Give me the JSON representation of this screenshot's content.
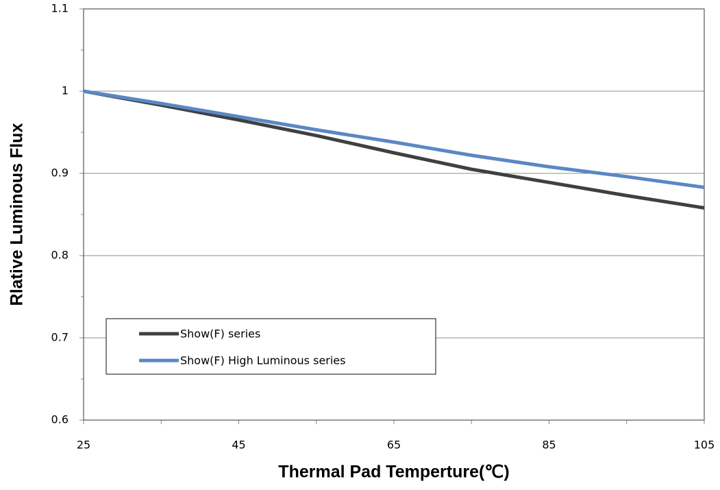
{
  "chart_data": {
    "type": "line",
    "xlabel": "Thermal Pad Temperture(℃)",
    "ylabel": "Rlative Luminous Flux",
    "x": [
      25,
      35,
      45,
      55,
      65,
      75,
      85,
      95,
      105
    ],
    "series": [
      {
        "name": "Show(F) series",
        "color": "#404040",
        "values": [
          1.0,
          0.983,
          0.965,
          0.946,
          0.925,
          0.905,
          0.889,
          0.873,
          0.858
        ]
      },
      {
        "name": "Show(F) High Luminous series",
        "color": "#5b87c5",
        "values": [
          1.0,
          0.985,
          0.969,
          0.953,
          0.938,
          0.922,
          0.908,
          0.896,
          0.883
        ]
      }
    ],
    "xlim": [
      25,
      105
    ],
    "xticks": [
      25,
      45,
      65,
      85,
      105
    ],
    "x_minor_ticks": [
      35,
      55,
      75,
      95
    ],
    "ylim": [
      0.6,
      1.1
    ],
    "yticks": [
      0.6,
      0.7,
      0.8,
      0.9,
      1,
      1.1
    ],
    "y_minor_ticks": [
      0.65,
      0.75,
      0.85,
      0.95,
      1.05
    ],
    "grid": true,
    "legend": "lower left"
  }
}
